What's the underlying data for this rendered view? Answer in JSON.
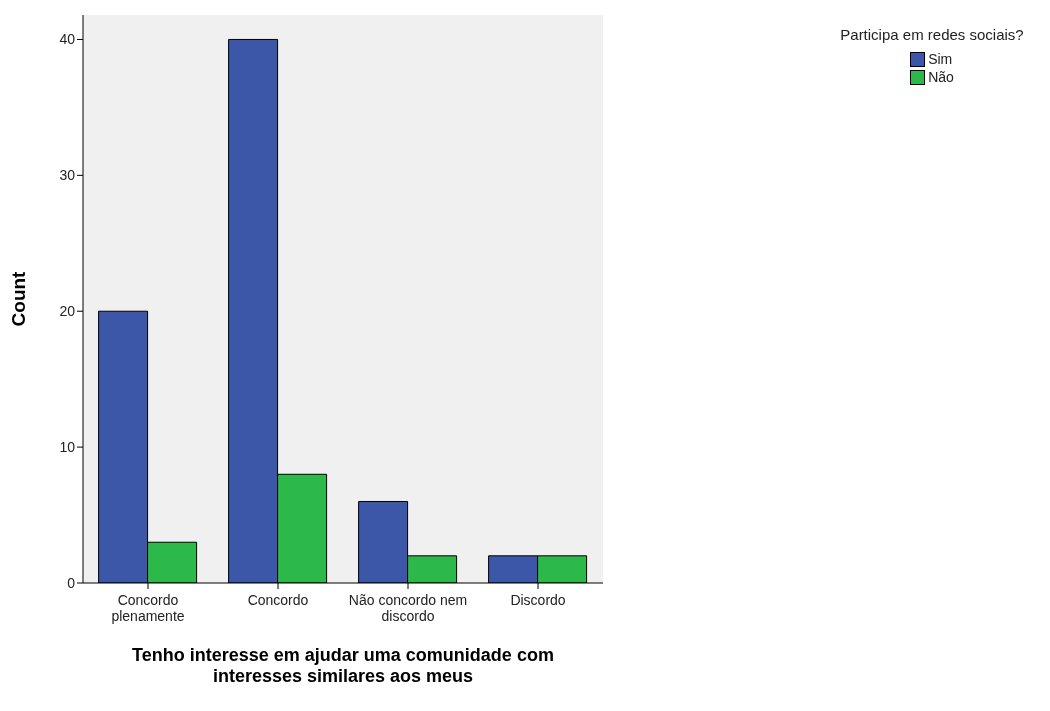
{
  "chart_data": {
    "type": "bar",
    "xlabel": "Tenho interesse em ajudar uma comunidade com interesses similares aos meus",
    "ylabel": "Count",
    "legend_title": "Participa em redes sociais?",
    "categories": [
      "Concordo plenamente",
      "Concordo",
      "Não concordo nem discordo",
      "Discordo"
    ],
    "series": [
      {
        "name": "Sim",
        "color": "#3c56a8",
        "values": [
          20,
          40,
          6,
          2
        ]
      },
      {
        "name": "Não",
        "color": "#2db84a",
        "values": [
          3,
          8,
          2,
          2
        ]
      }
    ],
    "ylim": [
      0,
      41.8
    ],
    "yticks": [
      0,
      10,
      20,
      30,
      40
    ],
    "legend": "top right"
  }
}
